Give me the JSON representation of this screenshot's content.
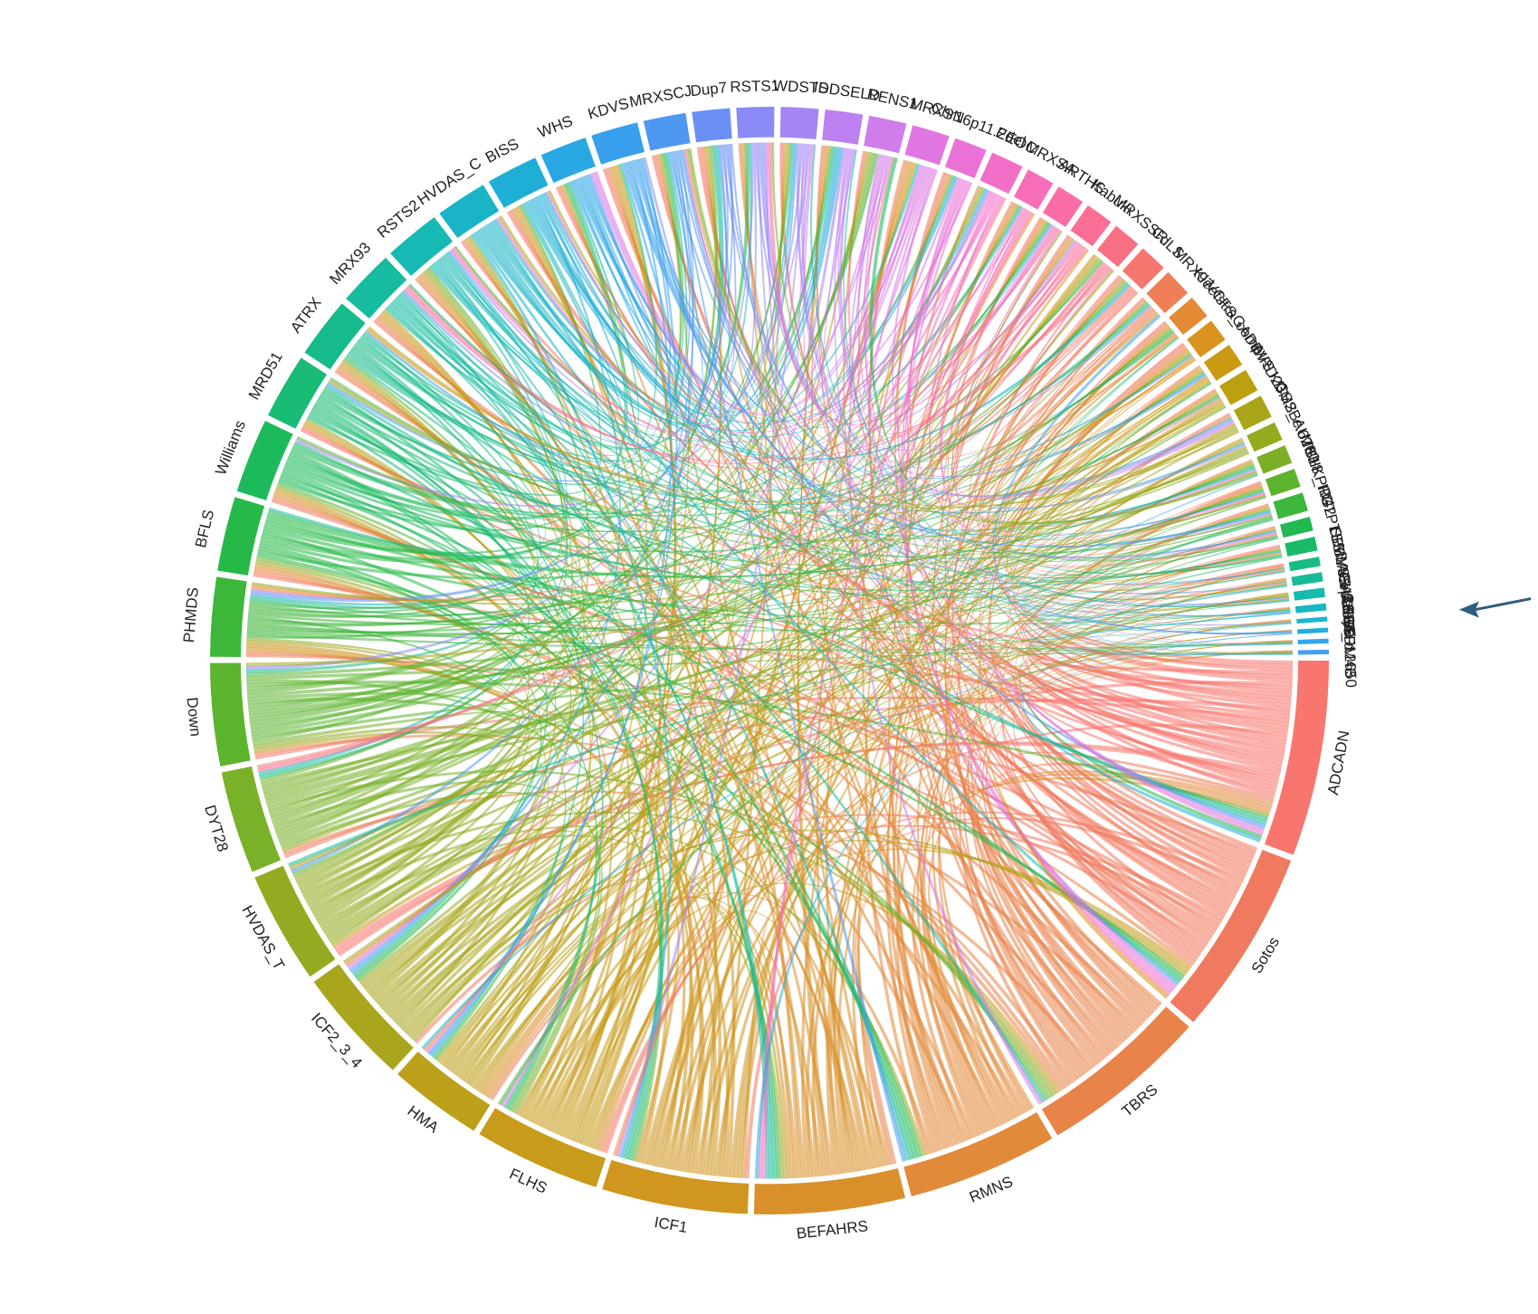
{
  "chart_data": {
    "type": "chord",
    "title": "",
    "segments": [
      {
        "name": "ADCADN",
        "value": 42,
        "color": "#F8766D"
      },
      {
        "name": "Sotos",
        "value": 40,
        "color": "#F07A5F"
      },
      {
        "name": "TBRS",
        "value": 36,
        "color": "#E8834A"
      },
      {
        "name": "RMNS",
        "value": 32,
        "color": "#E18A3A"
      },
      {
        "name": "BEFAHRS",
        "value": 32,
        "color": "#D9902A"
      },
      {
        "name": "ICF1",
        "value": 31,
        "color": "#D0961F"
      },
      {
        "name": "FLHS",
        "value": 27,
        "color": "#C99B1A"
      },
      {
        "name": "HMA",
        "value": 20,
        "color": "#BDA01A"
      },
      {
        "name": "ICF2_3_4",
        "value": 25,
        "color": "#A9A51C"
      },
      {
        "name": "HVDAS_T",
        "value": 24,
        "color": "#92AB21"
      },
      {
        "name": "DYT28",
        "value": 22,
        "color": "#79B128"
      },
      {
        "name": "Down",
        "value": 22,
        "color": "#5DB42F"
      },
      {
        "name": "PHMDS",
        "value": 17,
        "color": "#3CB739"
      },
      {
        "name": "BFLS",
        "value": 16,
        "color": "#26B947"
      },
      {
        "name": "Williams",
        "value": 16,
        "color": "#1DBA5C"
      },
      {
        "name": "MRD51",
        "value": 14,
        "color": "#19BB75"
      },
      {
        "name": "ATRX",
        "value": 13,
        "color": "#17BB8B"
      },
      {
        "name": "MRX93",
        "value": 12,
        "color": "#16BBA0"
      },
      {
        "name": "RSTS2",
        "value": 12,
        "color": "#17B9B4"
      },
      {
        "name": "HVDAS_C",
        "value": 11,
        "color": "#19B5C6"
      },
      {
        "name": "BISS",
        "value": 11,
        "color": "#1FAFD6"
      },
      {
        "name": "WHS",
        "value": 10,
        "color": "#29A8E3"
      },
      {
        "name": "KDVS",
        "value": 10,
        "color": "#38A0EC"
      },
      {
        "name": "MRXSCJ",
        "value": 9,
        "color": "#4F98F2"
      },
      {
        "name": "Dup7",
        "value": 8,
        "color": "#6A8FF5"
      },
      {
        "name": "RSTS1",
        "value": 8,
        "color": "#8A8BF6"
      },
      {
        "name": "WDSTS",
        "value": 8,
        "color": "#A686F4"
      },
      {
        "name": "IDDSELD",
        "value": 8,
        "color": "#BD80F0"
      },
      {
        "name": "RENS1",
        "value": 8,
        "color": "#D07CEA"
      },
      {
        "name": "MRXSN",
        "value": 8,
        "color": "#DF76E2"
      },
      {
        "name": "Chr16p11.2del",
        "value": 7,
        "color": "#EA72D6"
      },
      {
        "name": "EEOC",
        "value": 7,
        "color": "#F26FC8"
      },
      {
        "name": "MRXSA",
        "value": 6,
        "color": "#F76EB8"
      },
      {
        "name": "ARTHS",
        "value": 6,
        "color": "#FA6DA7"
      },
      {
        "name": "Kabuki",
        "value": 6,
        "color": "#FB6E95"
      },
      {
        "name": "MRXSSR",
        "value": 6,
        "color": "#FA7083"
      },
      {
        "name": "CdLS",
        "value": 6,
        "color": "#F87670"
      },
      {
        "name": "MRX97",
        "value": 6,
        "color": "#EE7F56"
      },
      {
        "name": "Kleefstra",
        "value": 5,
        "color": "#E48A34"
      },
      {
        "name": "VCFS_comp",
        "value": 5,
        "color": "#D9931E"
      },
      {
        "name": "GADEVS",
        "value": 5,
        "color": "#CC9A12"
      },
      {
        "name": "MRD23",
        "value": 5,
        "color": "#BCA012"
      },
      {
        "name": "KDM2B",
        "value": 5,
        "color": "#A9A518"
      },
      {
        "name": "CSS_c.6200",
        "value": 4,
        "color": "#94AA1F"
      },
      {
        "name": "AUTS18",
        "value": 4,
        "color": "#7CAF27"
      },
      {
        "name": "MKHK_ID4",
        "value": 4,
        "color": "#5EB32F"
      },
      {
        "name": "PRC2",
        "value": 4,
        "color": "#3DB63C"
      },
      {
        "name": "GTPTS",
        "value": 3,
        "color": "#22B850"
      },
      {
        "name": "LLS",
        "value": 3,
        "color": "#1ABA68"
      },
      {
        "name": "SBBYSS",
        "value": 2,
        "color": "#18BB82"
      },
      {
        "name": "MLASA2",
        "value": 2,
        "color": "#17BB98"
      },
      {
        "name": "BAFopathy",
        "value": 2,
        "color": "#17BAAE"
      },
      {
        "name": "CHARGE",
        "value": 1.5,
        "color": "#18B8C1"
      },
      {
        "name": "CSS9",
        "value": 1,
        "color": "#1CB4D2"
      },
      {
        "name": "SRSF1",
        "value": 1,
        "color": "#24AEE0"
      },
      {
        "name": "CSS4_c.2650",
        "value": 1,
        "color": "#31A7EA"
      },
      {
        "name": "KDM4B",
        "value": 1,
        "color": "#459EF1"
      }
    ],
    "arrow_target": "CSS9",
    "arrow_color": "#2E5E7E"
  }
}
